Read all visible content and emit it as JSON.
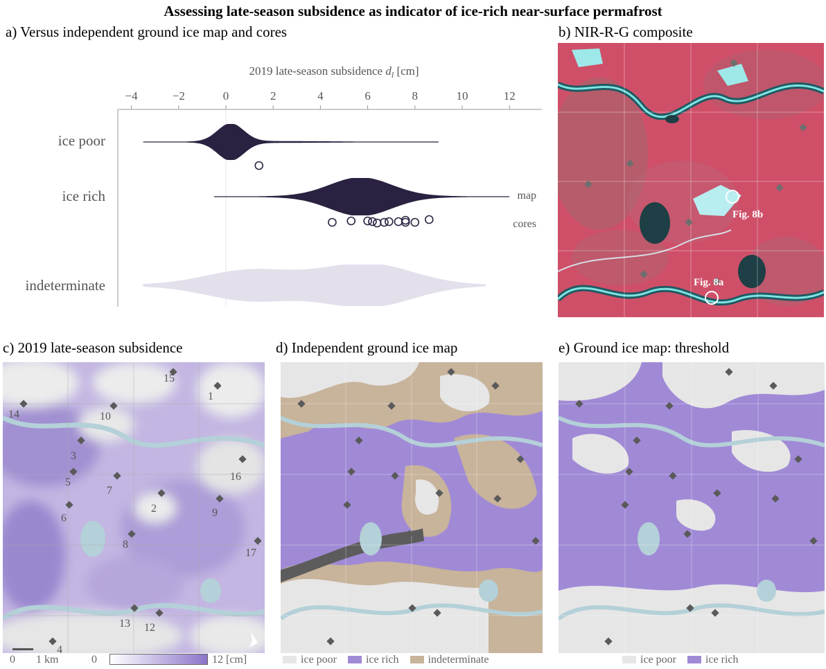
{
  "title": "Assessing late-season subsidence as indicator of ice-rich near-surface permafrost",
  "panels": {
    "a": "a) Versus independent ground ice map and cores",
    "b": "b) NIR-R-G composite",
    "c": "c) 2019 late-season subsidence",
    "d": "d) Independent ground ice map",
    "e": "e) Ground ice map: threshold"
  },
  "chart_data": {
    "type": "violin",
    "xlabel": "2019 late-season subsidence d_l [cm]",
    "xlabel_main": "2019 late-season subsidence ",
    "xlabel_sym": "d",
    "xlabel_sub": "l",
    "xlabel_unit": " [cm]",
    "xlim": [
      -4.5,
      13.5
    ],
    "xticks": [
      -4,
      -2,
      0,
      2,
      4,
      6,
      8,
      10,
      12
    ],
    "xtick_labels": [
      "−4",
      "−2",
      "0",
      "2",
      "4",
      "6",
      "8",
      "10",
      "12"
    ],
    "categories": [
      "ice poor",
      "ice rich",
      "indeterminate"
    ],
    "side_labels": {
      "map": "map",
      "cores": "cores"
    },
    "colors": {
      "ice_poor": "#2a2240",
      "ice_rich": "#2a2240",
      "indeterminate": "#e3e0ec",
      "dot": "#2a2240"
    },
    "series": [
      {
        "category": "ice poor",
        "range": [
          -3.5,
          9
        ],
        "mode": 0.2,
        "cores": [
          1.4
        ]
      },
      {
        "category": "ice rich",
        "range": [
          -0.5,
          12
        ],
        "mode": 5.7,
        "cores": [
          4.5,
          5.3,
          6.0,
          6.2,
          6.4,
          6.7,
          6.9,
          7.3,
          7.6,
          7.6,
          8.0,
          8.6
        ]
      },
      {
        "category": "indeterminate",
        "range": [
          -3.5,
          11
        ],
        "modes": [
          1,
          6
        ],
        "cores": []
      }
    ]
  },
  "composite": {
    "fig8b": "Fig. 8b",
    "fig8a": "Fig. 8a"
  },
  "subsidence": {
    "sites": [
      {
        "label": "15"
      },
      {
        "label": "1"
      },
      {
        "label": "14"
      },
      {
        "label": "10"
      },
      {
        "label": "3"
      },
      {
        "label": "16"
      },
      {
        "label": "5"
      },
      {
        "label": "7"
      },
      {
        "label": "2"
      },
      {
        "label": "6"
      },
      {
        "label": "9"
      },
      {
        "label": "8"
      },
      {
        "label": "17"
      },
      {
        "label": "13"
      },
      {
        "label": "12"
      },
      {
        "label": "4"
      }
    ],
    "scalebar_zero": "0",
    "scalebar_label": "1 km",
    "colorbar_min": "0",
    "colorbar_max": "12 [cm]",
    "colorbar_from": "#ffffff",
    "colorbar_to": "#8b74c9"
  },
  "legend_d": {
    "ice_poor": "ice poor",
    "ice_rich": "ice rich",
    "indeterminate": "indeterminate"
  },
  "legend_e": {
    "ice_poor": "ice poor",
    "ice_rich": "ice rich"
  },
  "map_colors": {
    "ice_poor": "#e6e6e6",
    "ice_rich": "#a08ad6",
    "indeterminate": "#c8b39b",
    "water": "#b9d3dc"
  }
}
